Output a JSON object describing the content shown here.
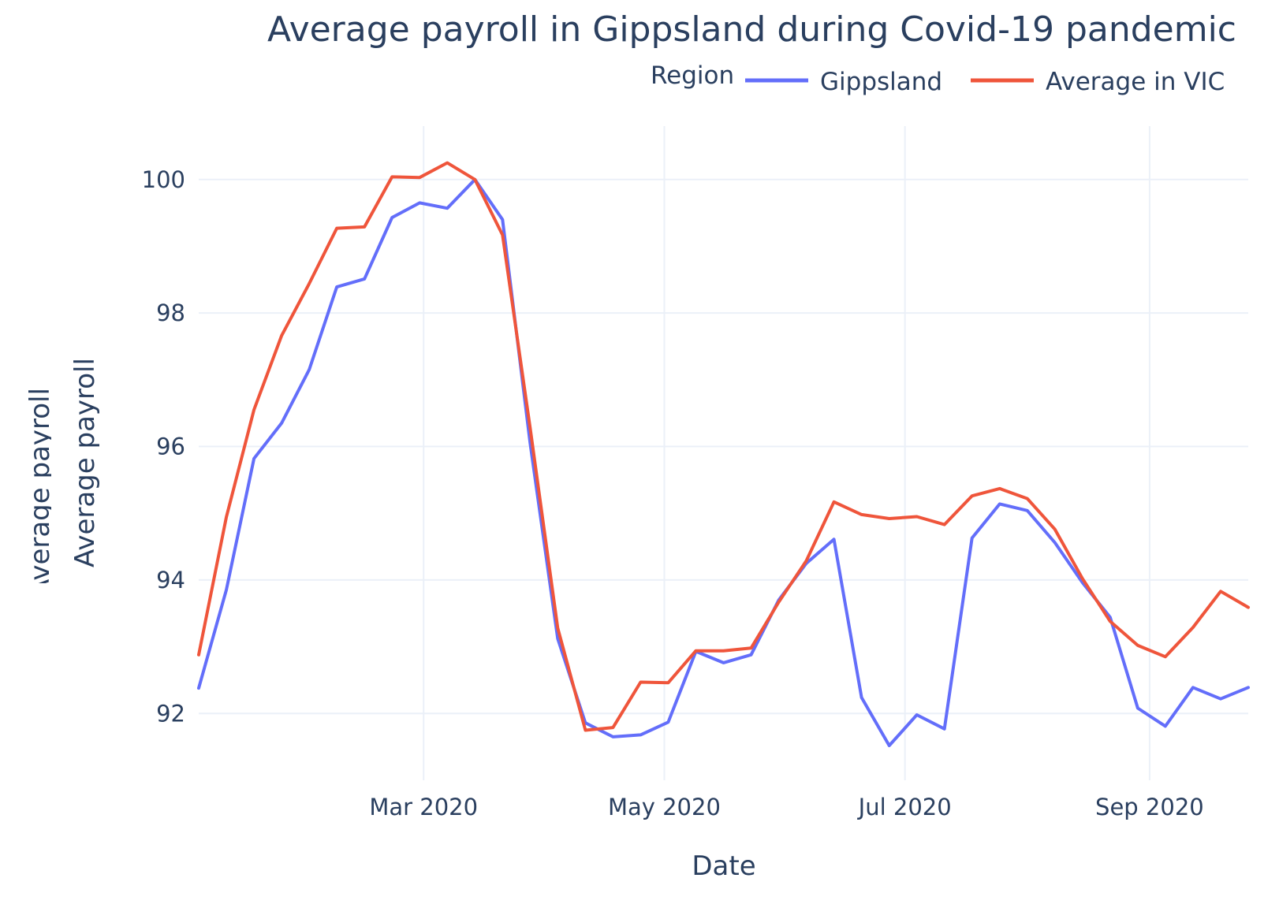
{
  "chart_data": {
    "type": "line",
    "title": "Average payroll in Gippsland during Covid-19 pandemic",
    "xlabel": "Date",
    "ylabel": "Average payroll",
    "ghost_ylabel": "Average payroll",
    "legend": {
      "title": "Region",
      "placement": "top-right"
    },
    "xlim": [
      "2020-01-04",
      "2020-09-26"
    ],
    "ylim": [
      91.0,
      100.8
    ],
    "x_ticks": [
      {
        "date": "2020-03-01",
        "label": "Mar 2020"
      },
      {
        "date": "2020-05-01",
        "label": "May 2020"
      },
      {
        "date": "2020-07-01",
        "label": "Jul 2020"
      },
      {
        "date": "2020-09-01",
        "label": "Sep 2020"
      }
    ],
    "y_ticks": [
      92,
      94,
      96,
      98,
      100
    ],
    "grid": true,
    "x": [
      "2020-01-04",
      "2020-01-11",
      "2020-01-18",
      "2020-01-25",
      "2020-02-01",
      "2020-02-08",
      "2020-02-15",
      "2020-02-22",
      "2020-02-29",
      "2020-03-07",
      "2020-03-14",
      "2020-03-21",
      "2020-03-28",
      "2020-04-04",
      "2020-04-11",
      "2020-04-18",
      "2020-04-25",
      "2020-05-02",
      "2020-05-09",
      "2020-05-16",
      "2020-05-23",
      "2020-05-30",
      "2020-06-06",
      "2020-06-13",
      "2020-06-20",
      "2020-06-27",
      "2020-07-04",
      "2020-07-11",
      "2020-07-18",
      "2020-07-25",
      "2020-08-01",
      "2020-08-08",
      "2020-08-15",
      "2020-08-22",
      "2020-08-29",
      "2020-09-05",
      "2020-09-12",
      "2020-09-19",
      "2020-09-26"
    ],
    "series": [
      {
        "name": "Gippsland",
        "color": "#636efa",
        "values": [
          92.38,
          93.85,
          95.82,
          96.35,
          97.15,
          98.39,
          98.51,
          99.43,
          99.65,
          99.57,
          100.0,
          99.4,
          96.05,
          93.12,
          91.86,
          91.65,
          91.68,
          91.87,
          92.93,
          92.76,
          92.88,
          93.7,
          94.25,
          94.61,
          92.24,
          91.52,
          91.98,
          91.77,
          94.63,
          95.14,
          95.04,
          94.56,
          93.96,
          93.44,
          92.08,
          91.81,
          92.39,
          92.22,
          92.39
        ]
      },
      {
        "name": "Average in VIC",
        "color": "#ef553b",
        "values": [
          92.88,
          94.94,
          96.55,
          97.66,
          98.44,
          99.27,
          99.29,
          100.04,
          100.03,
          100.25,
          100.0,
          99.17,
          96.28,
          93.28,
          91.75,
          91.79,
          92.47,
          92.46,
          92.94,
          92.94,
          92.98,
          93.67,
          94.29,
          95.17,
          94.98,
          94.92,
          94.95,
          94.83,
          95.26,
          95.37,
          95.22,
          94.76,
          94.02,
          93.38,
          93.02,
          92.85,
          93.29,
          93.83,
          93.59
        ]
      }
    ]
  }
}
